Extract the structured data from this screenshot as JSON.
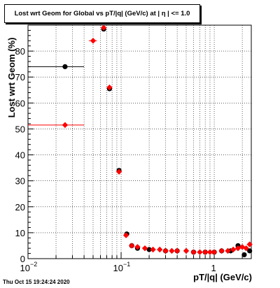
{
  "chart_data": {
    "type": "scatter",
    "title": "Lost wrt Geom for Global vs pT/|q| (GeV/c) at |  η | <= 1.0",
    "xlabel": "pT/|q| (GeV/c)",
    "ylabel": "Lost wrt Geom (%)",
    "x_scale": "log",
    "xlim": [
      0.01,
      2.5
    ],
    "ylim": [
      0,
      90
    ],
    "grid": true,
    "x_ticks": [
      {
        "value": 0.01,
        "base": "10",
        "exp": "−2"
      },
      {
        "value": 0.1,
        "base": "10",
        "exp": "−1"
      },
      {
        "value": 1,
        "base": "1",
        "exp": ""
      }
    ],
    "y_ticks": [
      0,
      10,
      20,
      30,
      40,
      50,
      60,
      70,
      80
    ],
    "series": [
      {
        "color": "#000000",
        "marker": "circle",
        "points": [
          {
            "x": 0.025,
            "y": 74,
            "xerr": [
              0.01,
              0.04
            ]
          },
          {
            "x": 0.065,
            "y": 88.5
          },
          {
            "x": 0.075,
            "y": 65.5
          },
          {
            "x": 0.095,
            "y": 34,
            "xerr": [
              0.09,
              0.1
            ]
          },
          {
            "x": 0.115,
            "y": 9.5
          },
          {
            "x": 0.13,
            "y": 5
          },
          {
            "x": 0.15,
            "y": 4
          },
          {
            "x": 0.2,
            "y": 3.5
          },
          {
            "x": 0.3,
            "y": 3
          },
          {
            "x": 0.4,
            "y": 3
          },
          {
            "x": 0.6,
            "y": 2.5
          },
          {
            "x": 0.8,
            "y": 2.5
          },
          {
            "x": 1.0,
            "y": 2.5
          },
          {
            "x": 1.2,
            "y": 3
          },
          {
            "x": 1.5,
            "y": 3
          },
          {
            "x": 1.8,
            "y": 5
          },
          {
            "x": 2.1,
            "y": 1.5
          },
          {
            "x": 2.4,
            "y": 3
          }
        ]
      },
      {
        "color": "#ff0000",
        "marker": "diamond",
        "points": [
          {
            "x": 0.025,
            "y": 51.5,
            "xerr": [
              0.01,
              0.04
            ]
          },
          {
            "x": 0.05,
            "y": 84,
            "xerr": [
              0.045,
              0.055
            ]
          },
          {
            "x": 0.065,
            "y": 89
          },
          {
            "x": 0.075,
            "y": 66
          },
          {
            "x": 0.095,
            "y": 33.5
          },
          {
            "x": 0.113,
            "y": 9
          },
          {
            "x": 0.13,
            "y": 5
          },
          {
            "x": 0.15,
            "y": 4.5
          },
          {
            "x": 0.18,
            "y": 4
          },
          {
            "x": 0.22,
            "y": 3.5
          },
          {
            "x": 0.26,
            "y": 3.5
          },
          {
            "x": 0.3,
            "y": 3
          },
          {
            "x": 0.35,
            "y": 3
          },
          {
            "x": 0.4,
            "y": 3
          },
          {
            "x": 0.5,
            "y": 3
          },
          {
            "x": 0.6,
            "y": 2.5
          },
          {
            "x": 0.7,
            "y": 2.5
          },
          {
            "x": 0.8,
            "y": 2.5
          },
          {
            "x": 0.9,
            "y": 2.5
          },
          {
            "x": 1.0,
            "y": 2.5
          },
          {
            "x": 1.2,
            "y": 3
          },
          {
            "x": 1.4,
            "y": 3
          },
          {
            "x": 1.6,
            "y": 3.5
          },
          {
            "x": 1.8,
            "y": 4
          },
          {
            "x": 2.0,
            "y": 4.5
          },
          {
            "x": 2.2,
            "y": 4
          },
          {
            "x": 2.4,
            "y": 5.5
          }
        ]
      }
    ]
  },
  "footer": {
    "timestamp": "Thu Oct 15 19:24:24 2020"
  }
}
